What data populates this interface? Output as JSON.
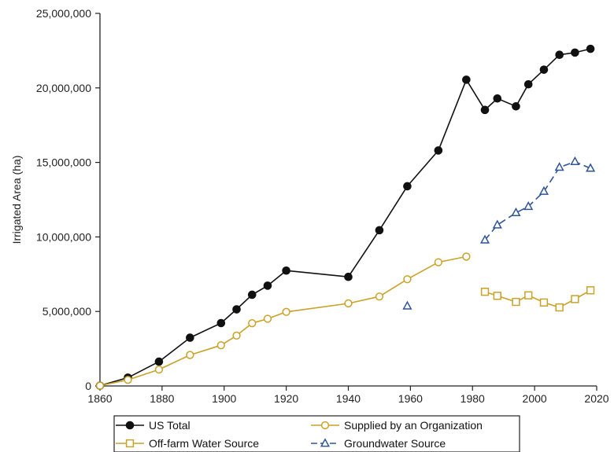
{
  "chart_data": {
    "type": "line",
    "title": "",
    "xlabel": "",
    "ylabel": "Irrigated Area (ha)",
    "xlim": [
      1860,
      2020
    ],
    "ylim": [
      0,
      25000000
    ],
    "x_ticks": [
      "1860",
      "1880",
      "1900",
      "1920",
      "1940",
      "1960",
      "1980",
      "2000",
      "2020"
    ],
    "y_ticks": [
      "0",
      "5,000,000",
      "10,000,000",
      "15,000,000",
      "20,000,000",
      "25,000,000"
    ],
    "grid": false,
    "legend_position": "bottom",
    "series": [
      {
        "name": "US Total",
        "color": "#111111",
        "marker": "filled-circle",
        "line_style": "solid",
        "points": [
          [
            1860,
            20000
          ],
          [
            1869,
            560000
          ],
          [
            1879,
            1630000
          ],
          [
            1889,
            3240000
          ],
          [
            1899,
            4220000
          ],
          [
            1904,
            5140000
          ],
          [
            1909,
            6120000
          ],
          [
            1914,
            6730000
          ],
          [
            1920,
            7740000
          ],
          [
            1940,
            7320000
          ],
          [
            1950,
            10450000
          ],
          [
            1959,
            13400000
          ],
          [
            1969,
            15800000
          ],
          [
            1978,
            20550000
          ],
          [
            1984,
            18520000
          ],
          [
            1988,
            19290000
          ],
          [
            1994,
            18760000
          ],
          [
            1998,
            20240000
          ],
          [
            2003,
            21220000
          ],
          [
            2008,
            22220000
          ],
          [
            2013,
            22370000
          ],
          [
            2018,
            22620000
          ]
        ]
      },
      {
        "name": "Supplied by an Organization",
        "color": "#C9A227",
        "marker": "open-circle",
        "line_style": "solid",
        "points": [
          [
            1860,
            20000
          ],
          [
            1869,
            410000
          ],
          [
            1879,
            1100000
          ],
          [
            1889,
            2080000
          ],
          [
            1899,
            2730000
          ],
          [
            1904,
            3380000
          ],
          [
            1909,
            4210000
          ],
          [
            1914,
            4510000
          ],
          [
            1920,
            4970000
          ],
          [
            1940,
            5540000
          ],
          [
            1950,
            6000000
          ],
          [
            1959,
            7160000
          ],
          [
            1969,
            8300000
          ],
          [
            1978,
            8680000
          ]
        ]
      },
      {
        "name": "Off-farm Water Source",
        "color": "#C9A227",
        "marker": "open-square",
        "line_style": "solid",
        "points": [
          [
            1984,
            6320000
          ],
          [
            1988,
            6050000
          ],
          [
            1994,
            5640000
          ],
          [
            1998,
            6080000
          ],
          [
            2003,
            5600000
          ],
          [
            2008,
            5270000
          ],
          [
            2013,
            5830000
          ],
          [
            2018,
            6420000
          ]
        ]
      },
      {
        "name": "Groundwater Source",
        "color": "#2F5597",
        "marker": "open-triangle",
        "line_style": "dashed",
        "points": [
          [
            1959,
            5360000
          ],
          [
            1984,
            9790000
          ],
          [
            1988,
            10800000
          ],
          [
            1994,
            11620000
          ],
          [
            1998,
            12040000
          ],
          [
            2003,
            13050000
          ],
          [
            2008,
            14670000
          ],
          [
            2013,
            15050000
          ],
          [
            2018,
            14600000
          ]
        ],
        "line_segments": [
          [
            1,
            8
          ]
        ]
      }
    ]
  }
}
